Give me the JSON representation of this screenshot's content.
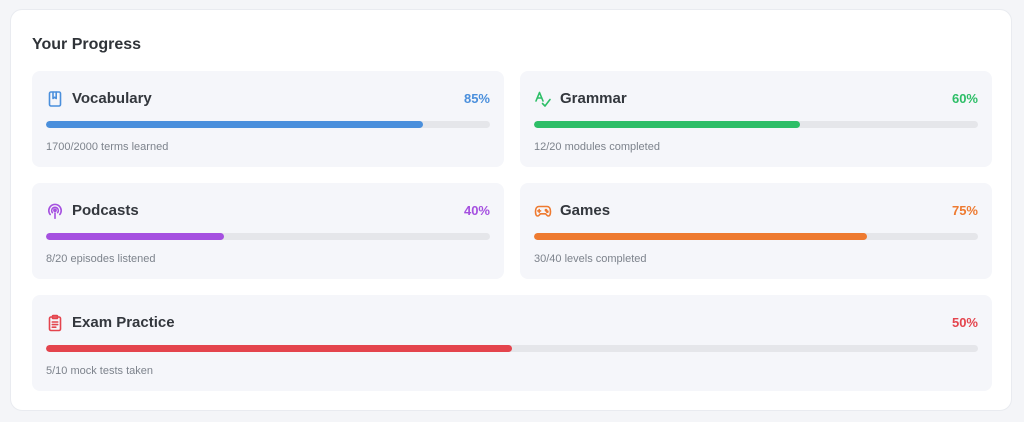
{
  "panel": {
    "title": "Your Progress"
  },
  "cards": [
    {
      "name": "Vocabulary",
      "percent_label": "85%",
      "progress": 0.85,
      "detail": "1700/2000 terms learned",
      "color": "#4a8fdc",
      "icon": "book-icon"
    },
    {
      "name": "Grammar",
      "percent_label": "60%",
      "progress": 0.6,
      "detail": "12/20 modules completed",
      "color": "#2dbe67",
      "icon": "spell-check-icon"
    },
    {
      "name": "Podcasts",
      "percent_label": "40%",
      "progress": 0.4,
      "detail": "8/20 episodes listened",
      "color": "#a550e0",
      "icon": "podcast-icon"
    },
    {
      "name": "Games",
      "percent_label": "75%",
      "progress": 0.75,
      "detail": "30/40 levels completed",
      "color": "#ee7a30",
      "icon": "gamepad-icon"
    },
    {
      "name": "Exam Practice",
      "percent_label": "50%",
      "progress": 0.5,
      "detail": "5/10 mock tests taken",
      "color": "#e4444d",
      "icon": "clipboard-icon"
    }
  ]
}
